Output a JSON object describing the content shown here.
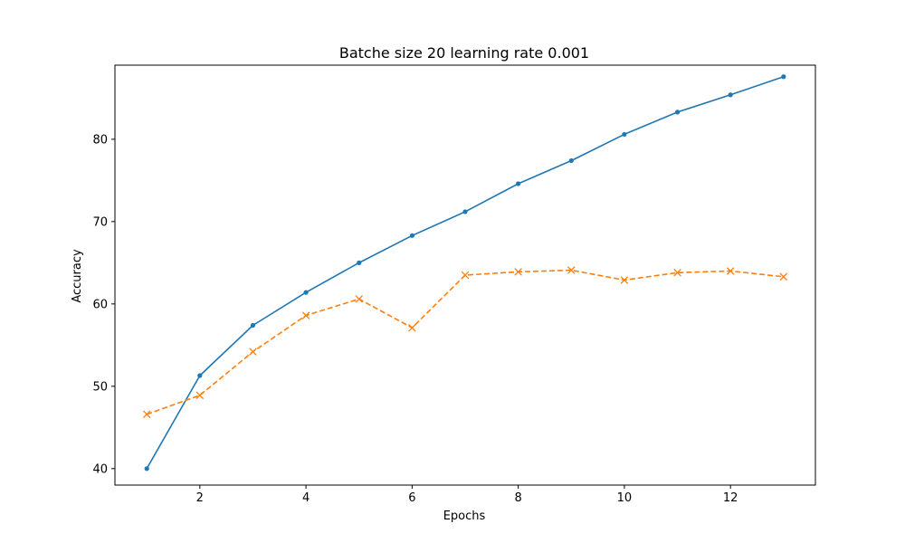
{
  "chart_data": {
    "type": "line",
    "title": "Batche size 20 learning rate 0.001",
    "xlabel": "Epochs",
    "ylabel": "Accuracy",
    "xlim": [
      0.4,
      13.6
    ],
    "ylim": [
      38,
      89
    ],
    "xticks": [
      2,
      4,
      6,
      8,
      10,
      12
    ],
    "yticks": [
      40,
      50,
      60,
      70,
      80
    ],
    "grid": false,
    "x": [
      1,
      2,
      3,
      4,
      5,
      6,
      7,
      8,
      9,
      10,
      11,
      12,
      13
    ],
    "series": [
      {
        "color": "#1f77b4",
        "line_style": "solid",
        "marker": "dot",
        "values": [
          40.0,
          51.3,
          57.4,
          61.4,
          65.0,
          68.3,
          71.2,
          74.6,
          77.4,
          80.6,
          83.3,
          85.4,
          87.6
        ]
      },
      {
        "color": "#ff7f0e",
        "line_style": "dashed",
        "marker": "x",
        "values": [
          46.6,
          48.9,
          54.2,
          58.6,
          60.6,
          57.1,
          63.5,
          63.9,
          64.1,
          62.9,
          63.8,
          64.0,
          63.3
        ]
      }
    ]
  }
}
